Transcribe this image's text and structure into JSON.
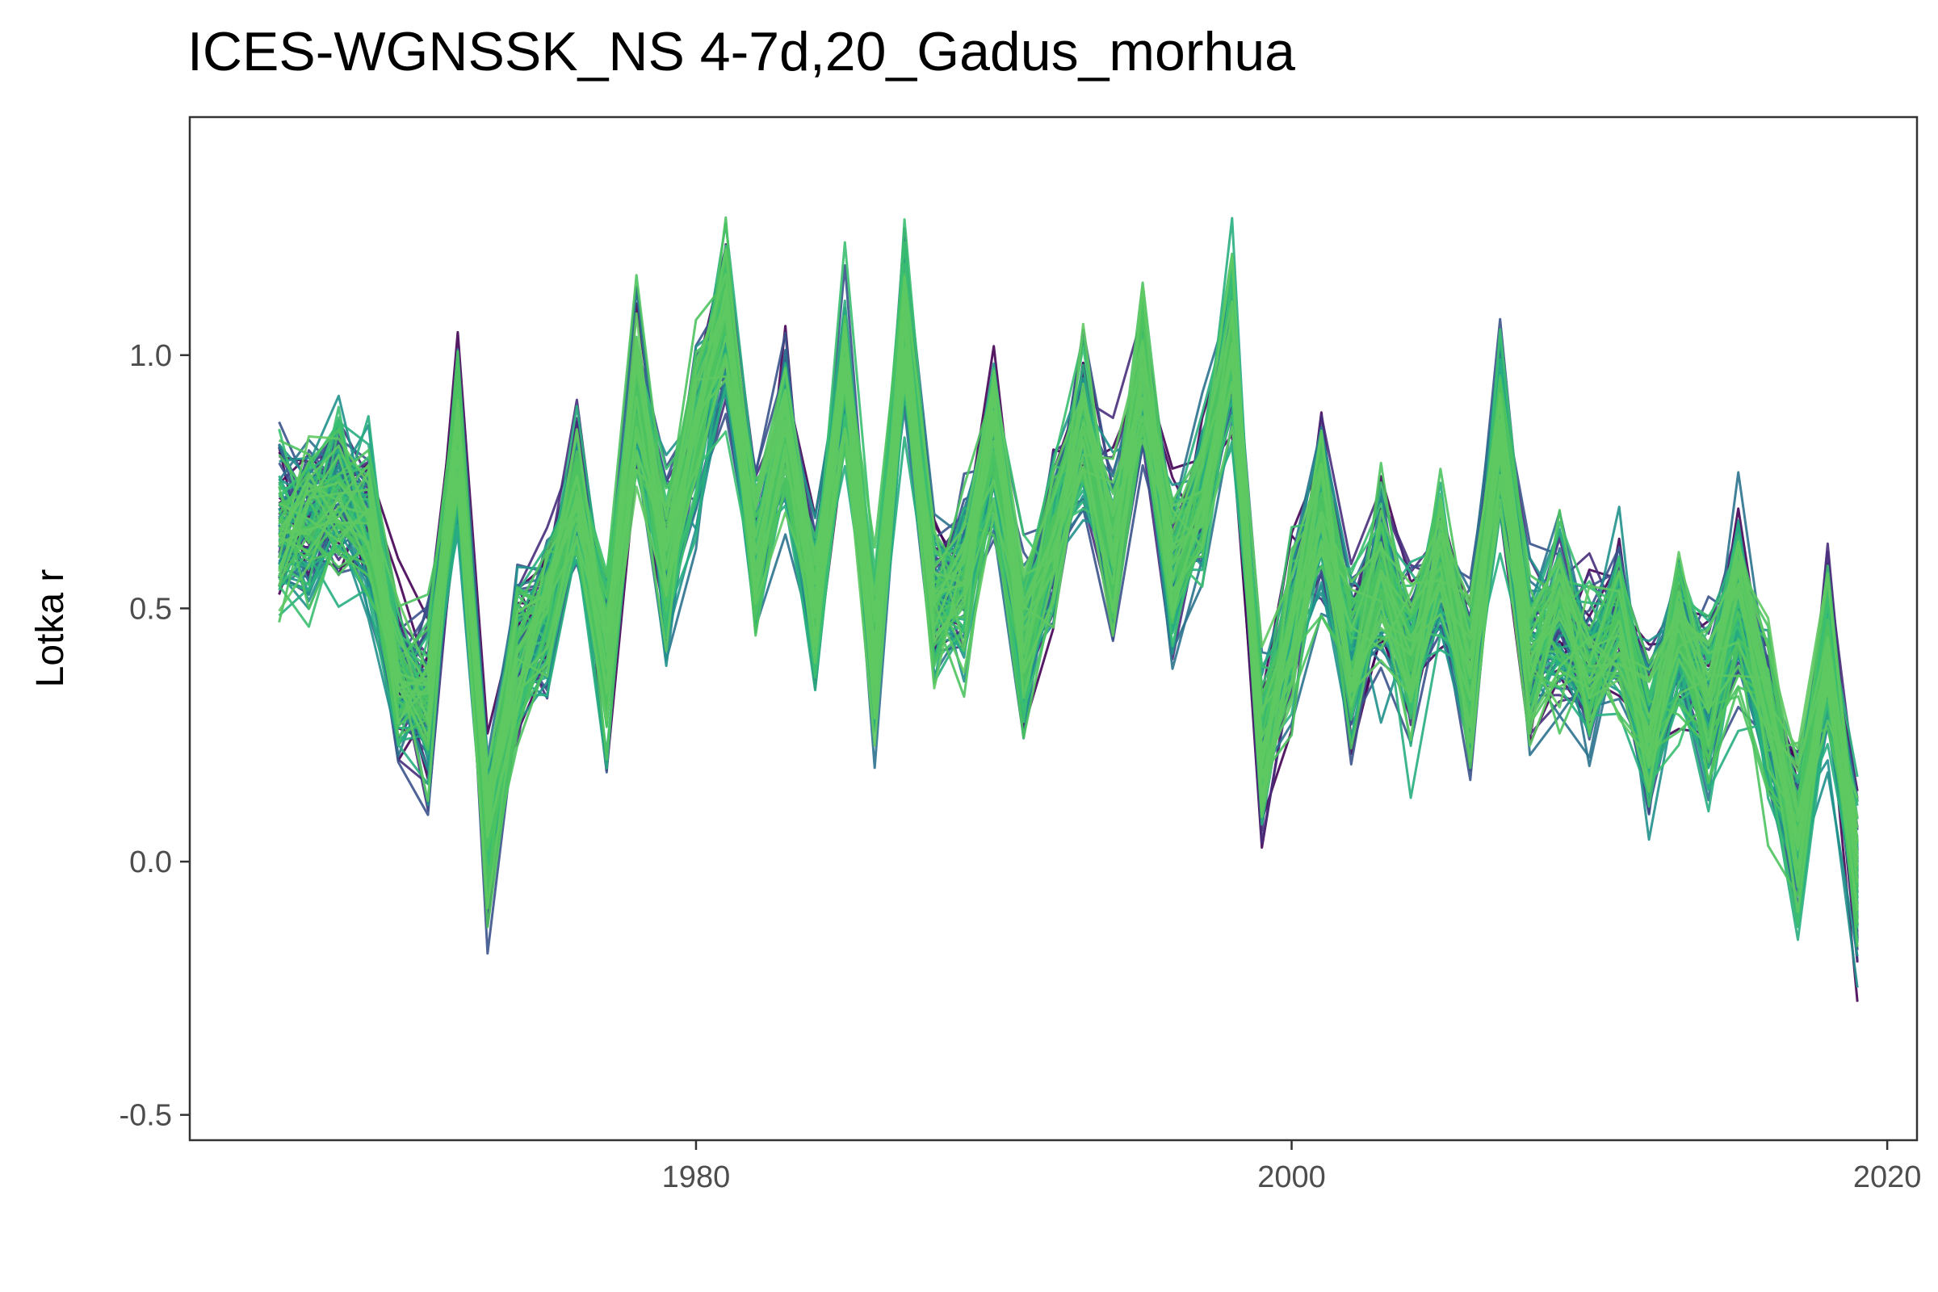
{
  "chart_data": {
    "type": "line",
    "title": "ICES-WGNSSK_NS 4-7d,20_Gadus_morhua",
    "xlabel": "",
    "ylabel": "Lotka r",
    "xlim": [
      1963,
      2021
    ],
    "ylim": [
      -0.55,
      1.47
    ],
    "x_ticks": [
      1980,
      2000,
      2020
    ],
    "x_tick_labels": [
      "1980",
      "2000",
      "2020"
    ],
    "y_ticks": [
      -0.5,
      0.0,
      0.5,
      1.0
    ],
    "y_tick_labels": [
      "-0.5",
      "0.0",
      "0.5",
      "1.0"
    ],
    "grid": false,
    "legend": "none",
    "series_note_colormap": "viridis (dark purple to green)",
    "colors": [
      "#440154",
      "#472d7b",
      "#3b528b",
      "#2c728e",
      "#21918c",
      "#28ae80",
      "#3bbf70",
      "#4cc35f",
      "#5ec962"
    ],
    "x": [
      1966,
      1967,
      1968,
      1969,
      1970,
      1971,
      1972,
      1973,
      1974,
      1975,
      1976,
      1977,
      1978,
      1979,
      1980,
      1981,
      1982,
      1983,
      1984,
      1985,
      1986,
      1987,
      1988,
      1989,
      1990,
      1991,
      1992,
      1993,
      1994,
      1995,
      1996,
      1997,
      1998,
      1999,
      2000,
      2001,
      2002,
      2003,
      2004,
      2005,
      2006,
      2007,
      2008,
      2009,
      2010,
      2011,
      2012,
      2013,
      2014,
      2015,
      2016,
      2017,
      2018,
      2019
    ],
    "central_estimate": [
      0.65,
      0.68,
      0.72,
      0.65,
      0.35,
      0.3,
      0.85,
      0.05,
      0.38,
      0.48,
      0.72,
      0.4,
      0.92,
      0.6,
      0.85,
      1.08,
      0.6,
      0.85,
      0.5,
      0.95,
      0.4,
      1.05,
      0.5,
      0.55,
      0.82,
      0.42,
      0.62,
      0.85,
      0.6,
      0.95,
      0.58,
      0.7,
      1.02,
      0.2,
      0.45,
      0.7,
      0.4,
      0.55,
      0.4,
      0.58,
      0.35,
      0.85,
      0.4,
      0.48,
      0.38,
      0.48,
      0.25,
      0.45,
      0.3,
      0.5,
      0.28,
      0.05,
      0.4,
      -0.05
    ],
    "series_count": 120
  }
}
